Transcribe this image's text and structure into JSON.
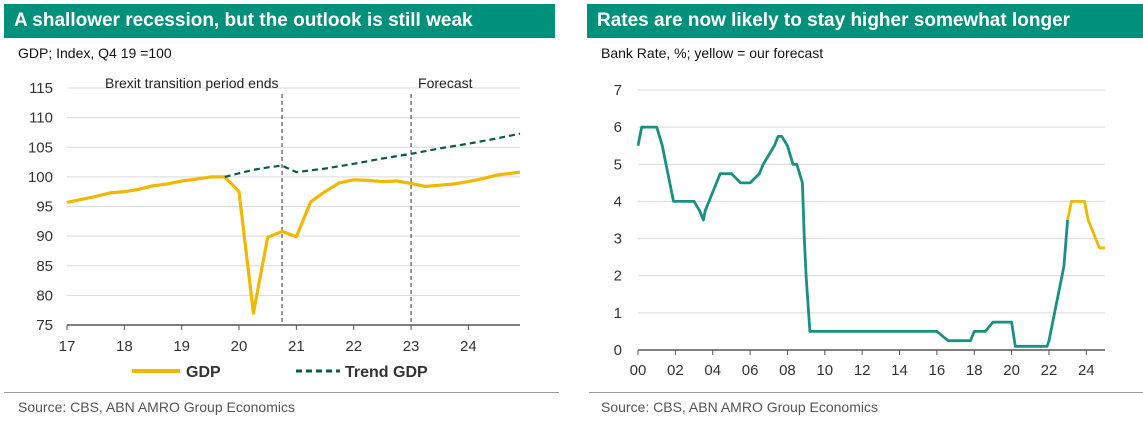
{
  "left": {
    "title": "A shallower recession, but the outlook is still weak",
    "subtitle": "GDP; Index, Q4 19 =100",
    "source": "Source: CBS, ABN AMRO Group Economics"
  },
  "right": {
    "title": "Rates are now likely to stay higher somewhat longer",
    "subtitle": "Bank Rate, %; yellow = our forecast",
    "source": "Source: CBS, ABN AMRO Group Economics"
  },
  "colors": {
    "header": "#00917c",
    "gdp": "#f0b800",
    "trend": "#0a5c45",
    "rate": "#1a9080",
    "forecast": "#f0b800"
  },
  "chart_data": [
    {
      "type": "line",
      "title": "A shallower recession, but the outlook is still weak",
      "subtitle": "GDP; Index, Q4 19 =100",
      "xlabel": "",
      "ylabel": "",
      "xlim": [
        2017,
        2024.9
      ],
      "ylim": [
        75,
        115
      ],
      "yticks": [
        75,
        80,
        85,
        90,
        95,
        100,
        105,
        110,
        115
      ],
      "xticks": [
        "17",
        "18",
        "19",
        "20",
        "21",
        "22",
        "23",
        "24"
      ],
      "grid": true,
      "legend_position": "bottom",
      "annotations": [
        {
          "text": "Brexit transition period ends",
          "x": 2020.75
        },
        {
          "text": "Forecast",
          "x": 2023.0
        }
      ],
      "series": [
        {
          "name": "GDP",
          "color": "#f0b800",
          "dash": "solid",
          "x": [
            2017,
            2017.25,
            2017.5,
            2017.75,
            2018,
            2018.25,
            2018.5,
            2018.75,
            2019,
            2019.25,
            2019.5,
            2019.75,
            2020,
            2020.25,
            2020.5,
            2020.75,
            2021,
            2021.25,
            2021.5,
            2021.75,
            2022,
            2022.25,
            2022.5,
            2022.75,
            2023,
            2023.25,
            2023.5,
            2023.75,
            2024,
            2024.25,
            2024.5,
            2024.75,
            2024.9
          ],
          "y": [
            95.7,
            96.2,
            96.7,
            97.3,
            97.5,
            97.9,
            98.5,
            98.8,
            99.3,
            99.6,
            100,
            100,
            97.5,
            77,
            89.8,
            90.8,
            89.9,
            95.8,
            97.5,
            99,
            99.5,
            99.4,
            99.2,
            99.3,
            98.9,
            98.4,
            98.6,
            98.8,
            99.2,
            99.7,
            100.3,
            100.6,
            100.8
          ]
        },
        {
          "name": "Trend GDP",
          "color": "#0a5c45",
          "dash": "dashed",
          "x": [
            2019.75,
            2020,
            2020.25,
            2020.5,
            2020.75,
            2021,
            2021.5,
            2022,
            2022.5,
            2023,
            2023.5,
            2024,
            2024.5,
            2024.9
          ],
          "y": [
            100,
            100.6,
            101.2,
            101.6,
            101.9,
            100.8,
            101.4,
            102.2,
            103.1,
            103.9,
            104.8,
            105.6,
            106.5,
            107.3
          ]
        }
      ]
    },
    {
      "type": "line",
      "title": "Rates are now likely to stay higher somewhat longer",
      "subtitle": "Bank Rate, %; yellow = our forecast",
      "xlabel": "",
      "ylabel": "",
      "xlim": [
        2000,
        2025
      ],
      "ylim": [
        0,
        7
      ],
      "yticks": [
        0,
        1,
        2,
        3,
        4,
        5,
        6,
        7
      ],
      "xticks": [
        "00",
        "02",
        "04",
        "06",
        "08",
        "10",
        "12",
        "14",
        "16",
        "18",
        "20",
        "22",
        "24"
      ],
      "grid": true,
      "series": [
        {
          "name": "Bank Rate",
          "color": "#1a9080",
          "dash": "solid",
          "x": [
            2000,
            2000.2,
            2000.5,
            2001,
            2001.3,
            2001.5,
            2001.7,
            2001.9,
            2002,
            2002.5,
            2003,
            2003.3,
            2003.5,
            2003.6,
            2003.8,
            2004,
            2004.2,
            2004.4,
            2004.6,
            2004.8,
            2005,
            2005.5,
            2005.7,
            2006,
            2006.5,
            2006.7,
            2007,
            2007.3,
            2007.5,
            2007.7,
            2008,
            2008.3,
            2008.5,
            2008.8,
            2008.9,
            2009,
            2009.2,
            2010,
            2012,
            2014,
            2016,
            2016.6,
            2017,
            2017.8,
            2018,
            2018.6,
            2019,
            2019.5,
            2020,
            2020.2,
            2021,
            2021.9,
            2022,
            2022.2,
            2022.4,
            2022.6,
            2022.8,
            2023.0
          ],
          "y": [
            5.5,
            6,
            6,
            6,
            5.5,
            5,
            4.5,
            4,
            4,
            4,
            4,
            3.75,
            3.5,
            3.75,
            4,
            4.25,
            4.5,
            4.75,
            4.75,
            4.75,
            4.75,
            4.5,
            4.5,
            4.5,
            4.75,
            5,
            5.25,
            5.5,
            5.75,
            5.75,
            5.5,
            5,
            5,
            4.5,
            3,
            2,
            0.5,
            0.5,
            0.5,
            0.5,
            0.5,
            0.25,
            0.25,
            0.25,
            0.5,
            0.5,
            0.75,
            0.75,
            0.75,
            0.1,
            0.1,
            0.1,
            0.25,
            0.75,
            1.25,
            1.75,
            2.25,
            3.5
          ]
        },
        {
          "name": "Forecast",
          "color": "#f0b800",
          "dash": "solid",
          "x": [
            2023.0,
            2023.2,
            2023.4,
            2023.6,
            2023.9,
            2024.1,
            2024.3,
            2024.5,
            2024.7,
            2025
          ],
          "y": [
            3.5,
            4,
            4,
            4,
            4,
            3.5,
            3.25,
            3.0,
            2.75,
            2.75
          ]
        }
      ]
    }
  ]
}
